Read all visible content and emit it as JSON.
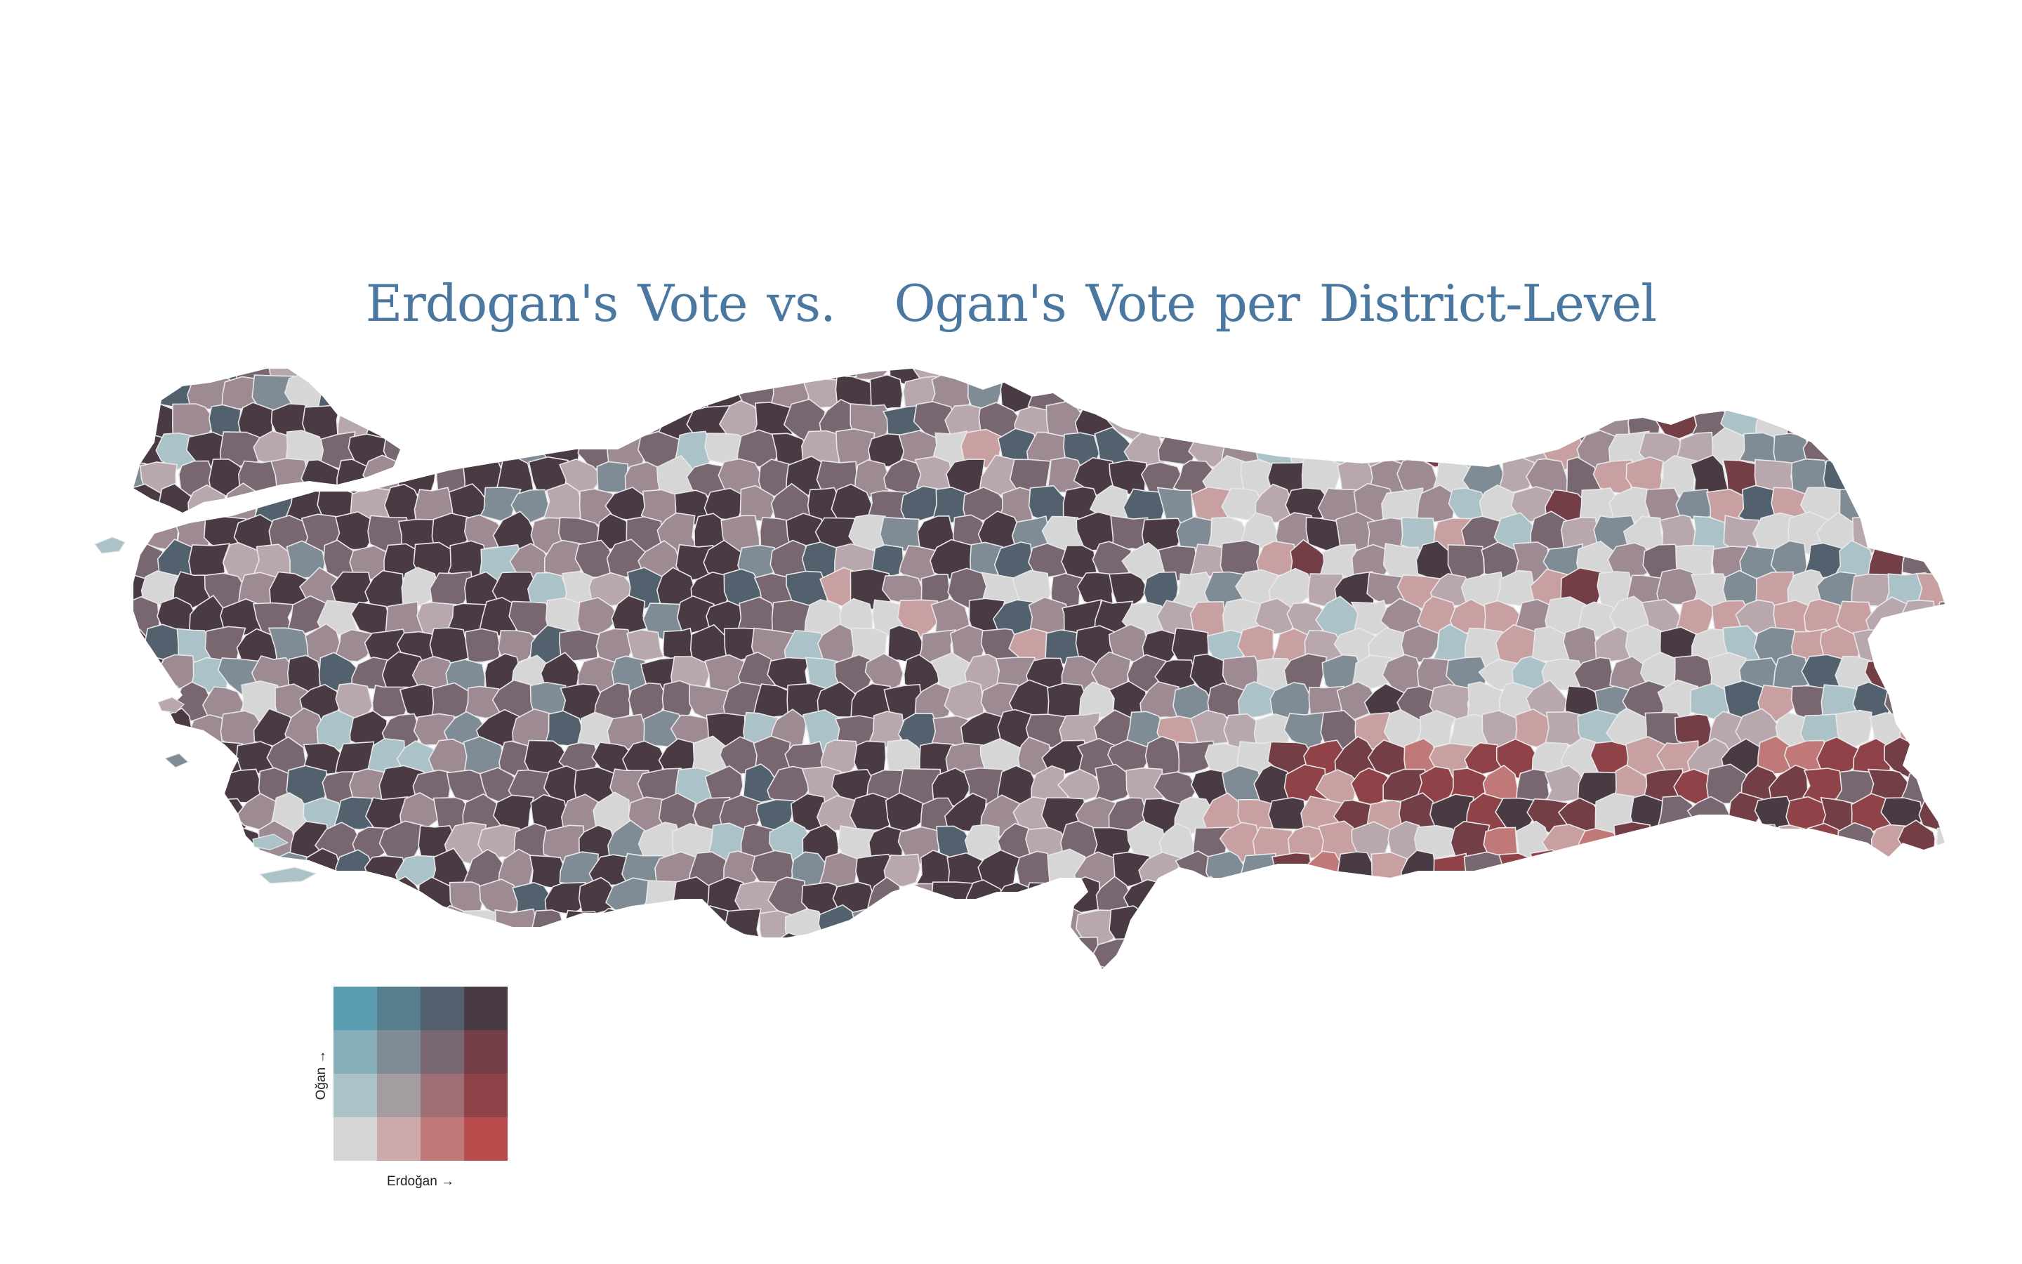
{
  "map": {
    "title": "Erdogan's Vote vs.   Ogan's Vote per District-Level",
    "border_color": "#e8e8e8"
  },
  "legend": {
    "x_label": "Erdoğan →",
    "y_label": "Oğan →",
    "rows_top_to_bottom": [
      [
        "#5a9db0",
        "#567f8d",
        "#52616d",
        "#4a3a44"
      ],
      [
        "#86aeb9",
        "#7f8c96",
        "#786670",
        "#733e46"
      ],
      [
        "#abc2c8",
        "#a39da2",
        "#9d6f74",
        "#8f4348"
      ],
      [
        "#d6d6d6",
        "#ccaaac",
        "#c07878",
        "#b84c4c"
      ]
    ]
  },
  "palette": {
    "dark_plum": "#4a3a44",
    "mauve": "#786670",
    "dusty_mauve": "#9d8a92",
    "pale_mauve": "#b8a8ae",
    "light_grey": "#d6d6d6",
    "slate_blue": "#52616d",
    "grey_blue": "#7f8c96",
    "pale_blue": "#abc2c8",
    "teal": "#86aeb9",
    "dusty_rose": "#c8a0a2",
    "rose": "#c07878",
    "brick": "#8f4348",
    "maroon": "#733e46"
  }
}
